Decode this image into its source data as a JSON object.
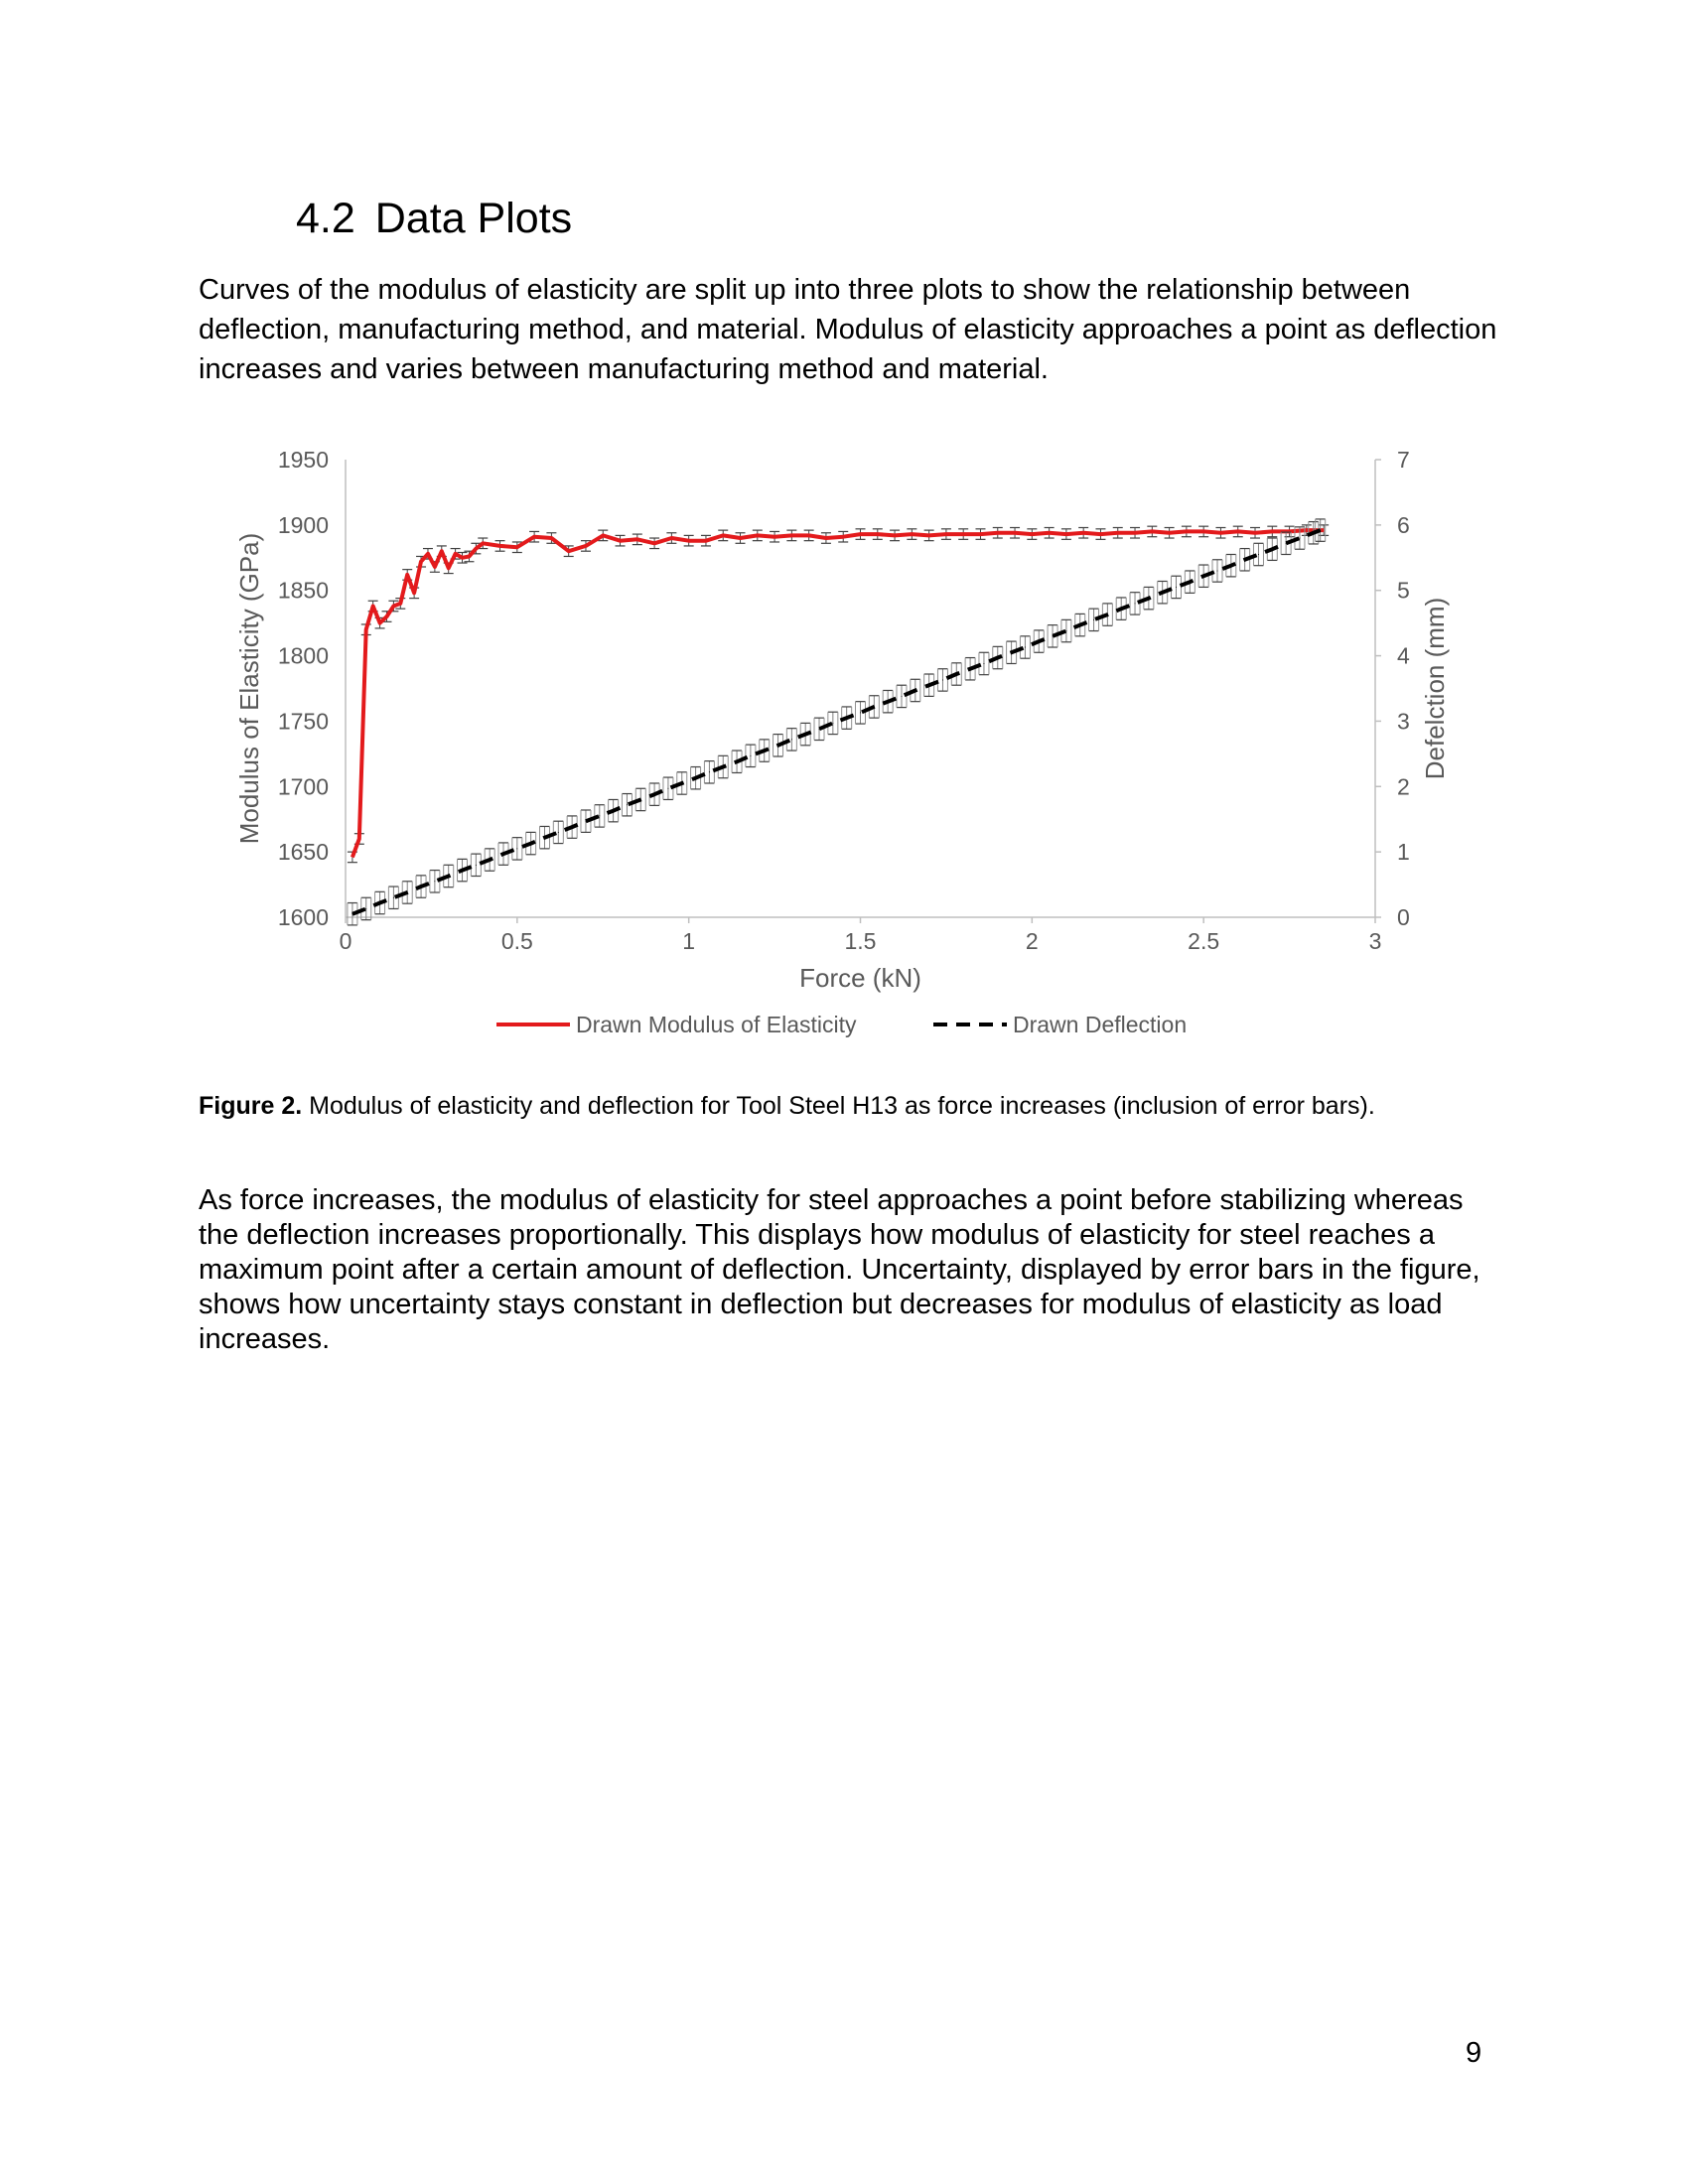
{
  "page": {
    "section_number": "4.2",
    "section_title": "Data Plots",
    "intro_paragraph": "Curves of the modulus of elasticity are split up into three plots to show the relationship between deflection, manufacturing method, and material. Modulus of elasticity approaches a point as deflection increases and varies between manufacturing method and material.",
    "caption_label": "Figure 2.",
    "caption_text": " Modulus of elasticity and deflection for Tool Steel H13 as force increases (inclusion of error bars).",
    "body_paragraph": "As force increases, the modulus of elasticity for steel approaches a point before stabilizing whereas the deflection increases proportionally. This displays how modulus of elasticity for steel reaches a maximum point after a certain amount of deflection. Uncertainty, displayed by error bars in the figure, shows how uncertainty stays constant in deflection but decreases for modulus of elasticity as load increases.",
    "page_number": "9"
  },
  "chart_data": {
    "type": "line",
    "xlabel": "Force (kN)",
    "ylabel": "Modulus of Elasticity (GPa)",
    "y2label": "Defelction (mm)",
    "xlim": [
      0,
      3
    ],
    "ylim": [
      1600,
      1950
    ],
    "y2lim": [
      0,
      7
    ],
    "xticks": [
      "0",
      "0.5",
      "1",
      "1.5",
      "2",
      "2.5",
      "3"
    ],
    "yticks": [
      "1600",
      "1650",
      "1700",
      "1750",
      "1800",
      "1850",
      "1900",
      "1950"
    ],
    "y2ticks": [
      "0",
      "1",
      "2",
      "3",
      "4",
      "5",
      "6",
      "7"
    ],
    "grid": false,
    "legend_position": "bottom",
    "colors": {
      "modulus": "#e31a1c",
      "deflection": "#000000",
      "axis": "#bfbfbf",
      "text": "#595959",
      "errorbar": "#404040"
    },
    "series": [
      {
        "name": "Drawn Modulus of Elasticity",
        "axis": "left",
        "style": "solid",
        "error": 4,
        "x": [
          0.02,
          0.04,
          0.06,
          0.08,
          0.1,
          0.12,
          0.14,
          0.16,
          0.18,
          0.2,
          0.22,
          0.24,
          0.26,
          0.28,
          0.3,
          0.32,
          0.34,
          0.36,
          0.38,
          0.4,
          0.45,
          0.5,
          0.55,
          0.6,
          0.65,
          0.7,
          0.75,
          0.8,
          0.85,
          0.9,
          0.95,
          1.0,
          1.05,
          1.1,
          1.15,
          1.2,
          1.25,
          1.3,
          1.35,
          1.4,
          1.45,
          1.5,
          1.55,
          1.6,
          1.65,
          1.7,
          1.75,
          1.8,
          1.85,
          1.9,
          1.95,
          2.0,
          2.05,
          2.1,
          2.15,
          2.2,
          2.25,
          2.3,
          2.35,
          2.4,
          2.45,
          2.5,
          2.55,
          2.6,
          2.65,
          2.7,
          2.75,
          2.8,
          2.85
        ],
        "values": [
          1646,
          1660,
          1820,
          1838,
          1825,
          1830,
          1838,
          1840,
          1862,
          1848,
          1872,
          1878,
          1868,
          1880,
          1867,
          1878,
          1875,
          1876,
          1882,
          1886,
          1884,
          1883,
          1891,
          1890,
          1880,
          1884,
          1892,
          1888,
          1889,
          1886,
          1890,
          1888,
          1888,
          1892,
          1890,
          1892,
          1891,
          1892,
          1892,
          1890,
          1891,
          1893,
          1893,
          1892,
          1893,
          1892,
          1893,
          1893,
          1893,
          1894,
          1894,
          1893,
          1894,
          1893,
          1894,
          1893,
          1894,
          1894,
          1895,
          1894,
          1895,
          1895,
          1894,
          1895,
          1894,
          1895,
          1895,
          1896,
          1896
        ]
      },
      {
        "name": "Drawn Deflection",
        "axis": "right",
        "style": "dashed",
        "error": 0.17,
        "x": [
          0.02,
          0.06,
          0.1,
          0.14,
          0.18,
          0.22,
          0.26,
          0.3,
          0.34,
          0.38,
          0.42,
          0.46,
          0.5,
          0.54,
          0.58,
          0.62,
          0.66,
          0.7,
          0.74,
          0.78,
          0.82,
          0.86,
          0.9,
          0.94,
          0.98,
          1.02,
          1.06,
          1.1,
          1.14,
          1.18,
          1.22,
          1.26,
          1.3,
          1.34,
          1.38,
          1.42,
          1.46,
          1.5,
          1.54,
          1.58,
          1.62,
          1.66,
          1.7,
          1.74,
          1.78,
          1.82,
          1.86,
          1.9,
          1.94,
          1.98,
          2.02,
          2.06,
          2.1,
          2.14,
          2.18,
          2.22,
          2.26,
          2.3,
          2.34,
          2.38,
          2.42,
          2.46,
          2.5,
          2.54,
          2.58,
          2.62,
          2.66,
          2.7,
          2.74,
          2.78,
          2.82,
          2.84
        ],
        "values": [
          0.05,
          0.13,
          0.22,
          0.3,
          0.38,
          0.47,
          0.55,
          0.63,
          0.72,
          0.8,
          0.88,
          0.97,
          1.05,
          1.13,
          1.22,
          1.3,
          1.38,
          1.47,
          1.55,
          1.63,
          1.72,
          1.8,
          1.88,
          1.97,
          2.05,
          2.13,
          2.22,
          2.3,
          2.38,
          2.47,
          2.55,
          2.63,
          2.72,
          2.8,
          2.88,
          2.97,
          3.05,
          3.13,
          3.22,
          3.3,
          3.38,
          3.47,
          3.55,
          3.63,
          3.72,
          3.8,
          3.88,
          3.97,
          4.05,
          4.13,
          4.22,
          4.3,
          4.38,
          4.47,
          4.55,
          4.63,
          4.72,
          4.8,
          4.88,
          4.97,
          5.05,
          5.13,
          5.22,
          5.3,
          5.38,
          5.47,
          5.55,
          5.63,
          5.72,
          5.8,
          5.88,
          5.92
        ]
      }
    ]
  }
}
